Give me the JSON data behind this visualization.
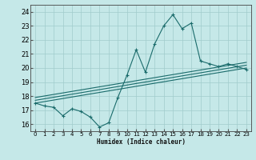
{
  "xlabel": "Humidex (Indice chaleur)",
  "bg_color": "#c5e8e8",
  "grid_color": "#a0cccc",
  "line_color": "#1a6b6b",
  "xlim": [
    -0.5,
    23.5
  ],
  "ylim": [
    15.5,
    24.5
  ],
  "xticks": [
    0,
    1,
    2,
    3,
    4,
    5,
    6,
    7,
    8,
    9,
    10,
    11,
    12,
    13,
    14,
    15,
    16,
    17,
    18,
    19,
    20,
    21,
    22,
    23
  ],
  "yticks": [
    16,
    17,
    18,
    19,
    20,
    21,
    22,
    23,
    24
  ],
  "main_line_x": [
    0,
    1,
    2,
    3,
    4,
    5,
    6,
    7,
    8,
    9,
    10,
    11,
    12,
    13,
    14,
    15,
    16,
    17,
    18,
    19,
    20,
    21,
    22,
    23
  ],
  "main_line_y": [
    17.5,
    17.3,
    17.2,
    16.6,
    17.1,
    16.9,
    16.5,
    15.8,
    16.1,
    17.9,
    19.5,
    21.3,
    19.7,
    21.7,
    23.0,
    23.8,
    22.8,
    23.2,
    20.5,
    20.3,
    20.1,
    20.3,
    20.1,
    19.9
  ],
  "line2_x": [
    0,
    23
  ],
  "line2_y": [
    17.5,
    20.0
  ],
  "line3_x": [
    0,
    23
  ],
  "line3_y": [
    17.7,
    20.2
  ],
  "line4_x": [
    0,
    23
  ],
  "line4_y": [
    17.9,
    20.4
  ]
}
